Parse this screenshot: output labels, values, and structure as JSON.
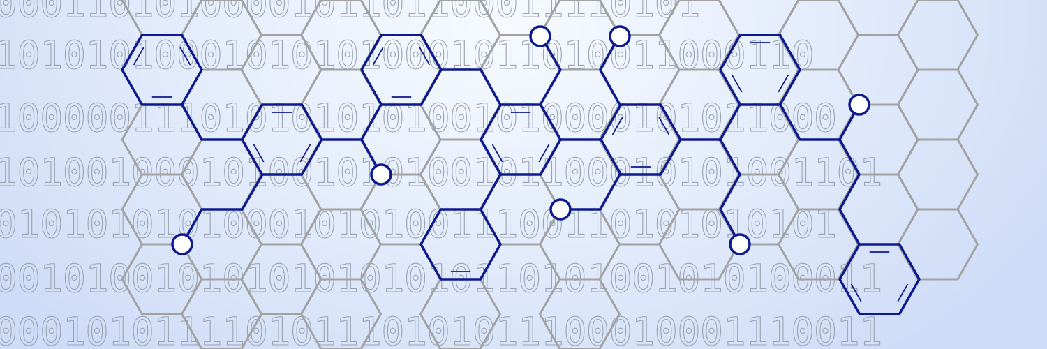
{
  "binary_rows": [
    "0001101010000101101100011110101",
    "101010100010101010001011010011000110",
    "1000001110101010101001010000101011000",
    "101001000101001010100101100010101001101",
    "0101010101000101010011100110101010101",
    "001010010101010101010110101001010100011",
    "000101011110101110101011100010001110011"
  ],
  "colors": {
    "grid": "#a2a2a2",
    "structure": "#0d1a8f",
    "background_light": "#f7fbff",
    "background_dark": "#cfdcf7",
    "digits": "#9aa3b0"
  }
}
